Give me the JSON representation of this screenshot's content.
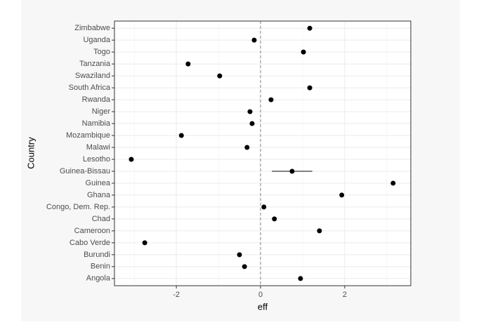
{
  "chart_data": {
    "type": "dot",
    "x_label": "eff",
    "y_label": "Country",
    "categories": [
      "Angola",
      "Benin",
      "Burundi",
      "Cabo Verde",
      "Cameroon",
      "Chad",
      "Congo, Dem. Rep.",
      "Ghana",
      "Guinea",
      "Guinea-Bissau",
      "Lesotho",
      "Malawi",
      "Mozambique",
      "Namibia",
      "Niger",
      "Rwanda",
      "South Africa",
      "Swaziland",
      "Tanzania",
      "Togo",
      "Uganda",
      "Zimbabwe"
    ],
    "values": [
      0.95,
      -0.38,
      -0.5,
      -2.75,
      1.4,
      0.33,
      0.08,
      1.93,
      3.15,
      0.75,
      -3.07,
      -0.32,
      -1.88,
      -0.2,
      -0.25,
      0.25,
      1.17,
      -0.97,
      -1.72,
      1.02,
      -0.15,
      1.17
    ],
    "errors": [
      null,
      null,
      null,
      null,
      null,
      null,
      null,
      null,
      null,
      0.48,
      null,
      null,
      null,
      null,
      null,
      null,
      null,
      null,
      null,
      null,
      null,
      null
    ],
    "color": "#000000",
    "xlim": [
      -3.47,
      3.57
    ],
    "xticks": [
      -2,
      0,
      2
    ],
    "vline": 0,
    "grid": true
  }
}
